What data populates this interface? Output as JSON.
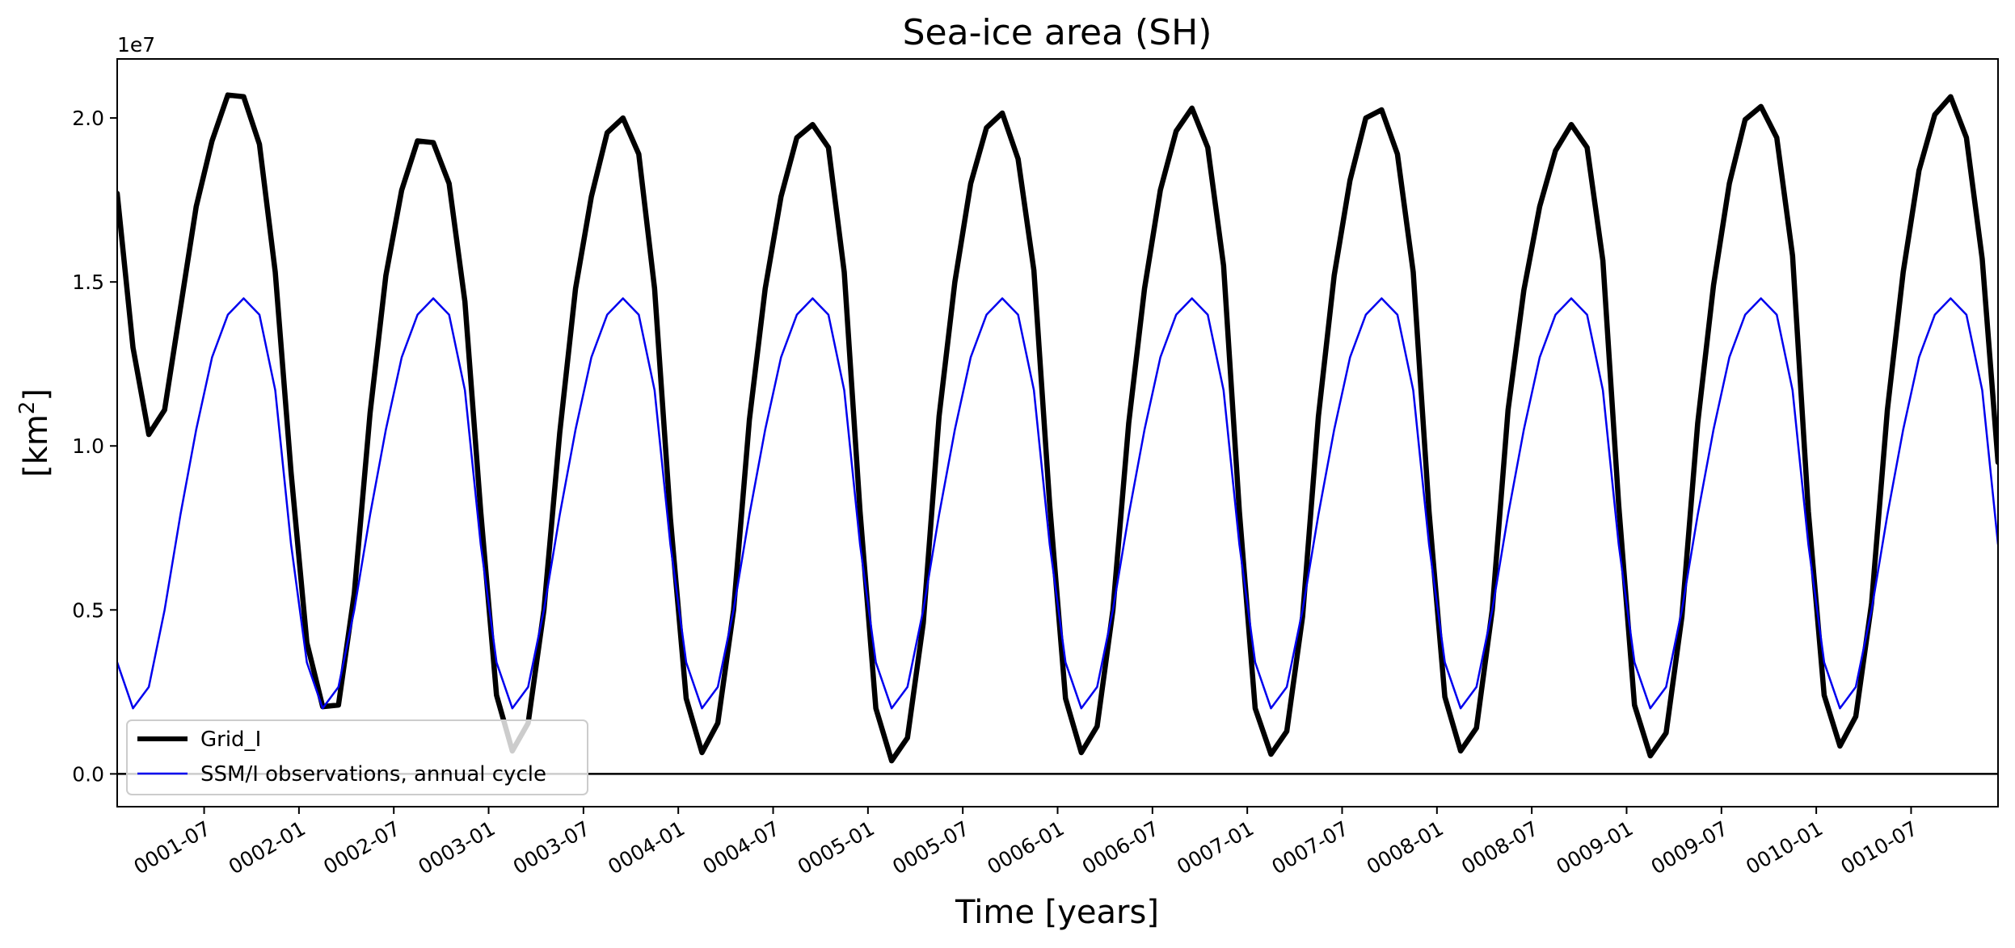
{
  "chart_data": {
    "type": "line",
    "title": "Sea-ice area (SH)",
    "xlabel": "Time [years]",
    "ylabel_main": "[km",
    "ylabel_sup": "2",
    "ylabel_close": "]",
    "y_offset_label": "1e7",
    "y_multiplier": 10000000,
    "xlim": [
      0,
      119
    ],
    "ylim": [
      -0.1,
      2.18
    ],
    "yticks": [
      0.0,
      0.5,
      1.0,
      1.5,
      2.0
    ],
    "ytick_labels": [
      "0.0",
      "0.5",
      "1.0",
      "1.5",
      "2.0"
    ],
    "xticks": [
      5.5,
      11.5,
      17.5,
      23.5,
      29.5,
      35.5,
      41.5,
      47.5,
      53.5,
      59.5,
      65.5,
      71.5,
      77.5,
      83.5,
      89.5,
      95.5,
      101.5,
      107.5,
      113.5
    ],
    "xtick_labels": [
      "0001-07",
      "0002-01",
      "0002-07",
      "0003-01",
      "0003-07",
      "0004-01",
      "0004-07",
      "0005-01",
      "0005-07",
      "0006-01",
      "0006-07",
      "0007-01",
      "0007-07",
      "0008-01",
      "0008-07",
      "0009-01",
      "0009-07",
      "0010-01",
      "0010-07"
    ],
    "zero_line": 0.0,
    "legend_location": "lower-left",
    "series": [
      {
        "name": "Grid_I",
        "color": "#000000",
        "values": [
          1.77,
          1.3,
          1.035,
          1.11,
          1.42,
          1.73,
          1.93,
          2.07,
          2.065,
          1.92,
          1.53,
          0.92,
          0.4,
          0.205,
          0.21,
          0.55,
          1.1,
          1.52,
          1.78,
          1.93,
          1.925,
          1.8,
          1.44,
          0.8,
          0.24,
          0.07,
          0.155,
          0.5,
          1.04,
          1.48,
          1.76,
          1.955,
          2.0,
          1.89,
          1.48,
          0.78,
          0.23,
          0.065,
          0.155,
          0.5,
          1.08,
          1.48,
          1.76,
          1.94,
          1.98,
          1.91,
          1.53,
          0.8,
          0.2,
          0.04,
          0.11,
          0.46,
          1.09,
          1.5,
          1.8,
          1.97,
          2.015,
          1.875,
          1.535,
          0.82,
          0.23,
          0.065,
          0.145,
          0.5,
          1.07,
          1.48,
          1.78,
          1.96,
          2.03,
          1.91,
          1.55,
          0.8,
          0.2,
          0.06,
          0.13,
          0.48,
          1.09,
          1.52,
          1.81,
          2.0,
          2.025,
          1.89,
          1.53,
          0.8,
          0.235,
          0.07,
          0.14,
          0.5,
          1.11,
          1.475,
          1.73,
          1.9,
          1.98,
          1.91,
          1.565,
          0.82,
          0.21,
          0.055,
          0.125,
          0.48,
          1.07,
          1.49,
          1.8,
          1.995,
          2.035,
          1.94,
          1.58,
          0.8,
          0.24,
          0.085,
          0.175,
          0.52,
          1.11,
          1.53,
          1.84,
          2.01,
          2.065,
          1.94,
          1.57,
          0.95
        ]
      },
      {
        "name": "SSM/I observations, annual cycle",
        "color": "#0000ee",
        "values": [
          0.34,
          0.2,
          0.265,
          0.5,
          0.79,
          1.05,
          1.27,
          1.4,
          1.45,
          1.4,
          1.17,
          0.7,
          0.34,
          0.2,
          0.265,
          0.5,
          0.79,
          1.05,
          1.27,
          1.4,
          1.45,
          1.4,
          1.17,
          0.7,
          0.34,
          0.2,
          0.265,
          0.5,
          0.79,
          1.05,
          1.27,
          1.4,
          1.45,
          1.4,
          1.17,
          0.7,
          0.34,
          0.2,
          0.265,
          0.5,
          0.79,
          1.05,
          1.27,
          1.4,
          1.45,
          1.4,
          1.17,
          0.7,
          0.34,
          0.2,
          0.265,
          0.5,
          0.79,
          1.05,
          1.27,
          1.4,
          1.45,
          1.4,
          1.17,
          0.7,
          0.34,
          0.2,
          0.265,
          0.5,
          0.79,
          1.05,
          1.27,
          1.4,
          1.45,
          1.4,
          1.17,
          0.7,
          0.34,
          0.2,
          0.265,
          0.5,
          0.79,
          1.05,
          1.27,
          1.4,
          1.45,
          1.4,
          1.17,
          0.7,
          0.34,
          0.2,
          0.265,
          0.5,
          0.79,
          1.05,
          1.27,
          1.4,
          1.45,
          1.4,
          1.17,
          0.7,
          0.34,
          0.2,
          0.265,
          0.5,
          0.79,
          1.05,
          1.27,
          1.4,
          1.45,
          1.4,
          1.17,
          0.7,
          0.34,
          0.2,
          0.265,
          0.5,
          0.79,
          1.05,
          1.27,
          1.4,
          1.45,
          1.4,
          1.17,
          0.7
        ]
      }
    ]
  }
}
